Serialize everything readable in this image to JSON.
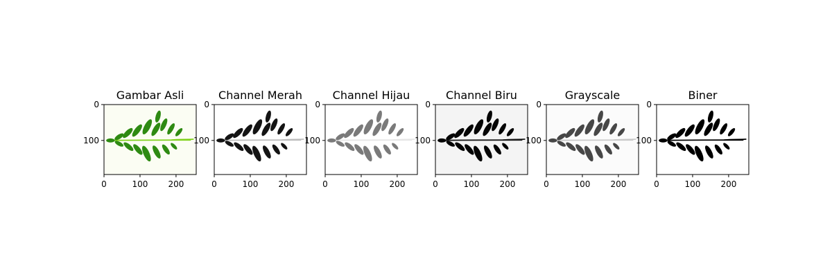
{
  "chart_data": [
    {
      "type": "image",
      "title": "Gambar Asli",
      "mode": "color",
      "background": "#fbfdf3",
      "leaf_color": "#2e8a12",
      "stem_color": "#7fd11b",
      "xticks": [
        0,
        100,
        200
      ],
      "yticks": [
        0,
        100
      ],
      "xlim": [
        0,
        256
      ],
      "ylim": [
        0,
        195
      ]
    },
    {
      "type": "image",
      "title": "Channel Merah",
      "mode": "gray",
      "background": "#ffffff",
      "leaf_color": "#141414",
      "stem_color": "#bdbdbd",
      "xticks": [
        0,
        100,
        200
      ],
      "yticks": [
        0,
        100
      ],
      "xlim": [
        0,
        256
      ],
      "ylim": [
        0,
        195
      ]
    },
    {
      "type": "image",
      "title": "Channel Hijau",
      "mode": "gray",
      "background": "#ffffff",
      "leaf_color": "#7a7a7a",
      "stem_color": "#e6e6e6",
      "xticks": [
        0,
        100,
        200
      ],
      "yticks": [
        0,
        100
      ],
      "xlim": [
        0,
        256
      ],
      "ylim": [
        0,
        195
      ]
    },
    {
      "type": "image",
      "title": "Channel Biru",
      "mode": "gray",
      "background": "#f4f4f4",
      "leaf_color": "#050505",
      "stem_color": "#1a1a1a",
      "xticks": [
        0,
        100,
        200
      ],
      "yticks": [
        0,
        100
      ],
      "xlim": [
        0,
        256
      ],
      "ylim": [
        0,
        195
      ]
    },
    {
      "type": "image",
      "title": "Grayscale",
      "mode": "gray",
      "background": "#fbfbfb",
      "leaf_color": "#474747",
      "stem_color": "#c9c9c9",
      "xticks": [
        0,
        100,
        200
      ],
      "yticks": [
        0,
        100
      ],
      "xlim": [
        0,
        256
      ],
      "ylim": [
        0,
        195
      ]
    },
    {
      "type": "image",
      "title": "Biner",
      "mode": "binary",
      "background": "#ffffff",
      "leaf_color": "#000000",
      "stem_color": "#000000",
      "xticks": [
        0,
        100,
        200
      ],
      "yticks": [
        0,
        100
      ],
      "xlim": [
        0,
        256
      ],
      "ylim": [
        0,
        195
      ]
    }
  ]
}
